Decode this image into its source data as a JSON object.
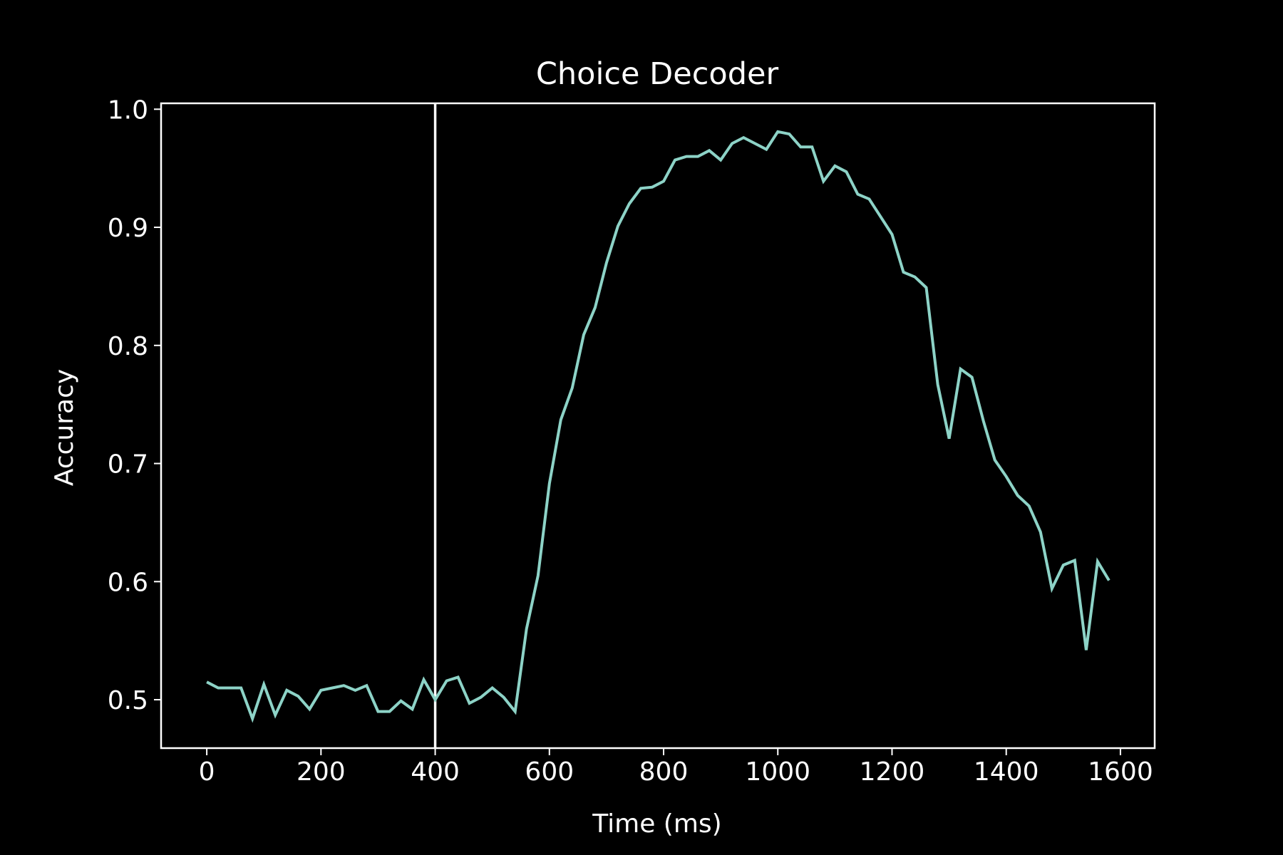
{
  "chart_data": {
    "type": "line",
    "title": "Choice Decoder",
    "xlabel": "Time (ms)",
    "ylabel": "Accuracy",
    "xlim": [
      -80,
      1660
    ],
    "ylim": [
      0.459,
      1.005
    ],
    "xticks": [
      0,
      200,
      400,
      600,
      800,
      1000,
      1200,
      1400,
      1600
    ],
    "xtick_labels": [
      "0",
      "200",
      "400",
      "600",
      "800",
      "1000",
      "1200",
      "1400",
      "1600"
    ],
    "yticks": [
      0.5,
      0.6,
      0.7,
      0.8,
      0.9,
      1.0
    ],
    "ytick_labels": [
      "0.5",
      "0.6",
      "0.7",
      "0.8",
      "0.9",
      "1.0"
    ],
    "grid": false,
    "vline": {
      "x": 400,
      "color": "#ffffff"
    },
    "series": [
      {
        "color": "#8dd3c7",
        "x": [
          0,
          20,
          40,
          60,
          80,
          100,
          120,
          140,
          160,
          180,
          200,
          220,
          240,
          260,
          280,
          300,
          320,
          340,
          360,
          380,
          400,
          420,
          440,
          460,
          480,
          500,
          520,
          540,
          560,
          580,
          600,
          620,
          640,
          660,
          680,
          700,
          720,
          740,
          760,
          780,
          800,
          820,
          840,
          860,
          880,
          900,
          920,
          940,
          960,
          980,
          1000,
          1020,
          1040,
          1060,
          1080,
          1100,
          1120,
          1140,
          1160,
          1180,
          1200,
          1220,
          1240,
          1260,
          1280,
          1300,
          1320,
          1340,
          1360,
          1380,
          1400,
          1420,
          1440,
          1460,
          1480,
          1500,
          1520,
          1540,
          1560,
          1580
        ],
        "y": [
          0.515,
          0.51,
          0.51,
          0.51,
          0.484,
          0.513,
          0.487,
          0.508,
          0.503,
          0.492,
          0.508,
          0.51,
          0.512,
          0.508,
          0.512,
          0.49,
          0.49,
          0.499,
          0.492,
          0.517,
          0.5,
          0.516,
          0.519,
          0.497,
          0.502,
          0.51,
          0.502,
          0.49,
          0.56,
          0.605,
          0.683,
          0.737,
          0.764,
          0.809,
          0.832,
          0.87,
          0.901,
          0.92,
          0.933,
          0.934,
          0.939,
          0.957,
          0.96,
          0.96,
          0.965,
          0.957,
          0.971,
          0.976,
          0.971,
          0.966,
          0.981,
          0.979,
          0.968,
          0.968,
          0.939,
          0.952,
          0.947,
          0.928,
          0.924,
          0.909,
          0.894,
          0.862,
          0.858,
          0.849,
          0.767,
          0.721,
          0.78,
          0.773,
          0.736,
          0.703,
          0.689,
          0.673,
          0.664,
          0.642,
          0.594,
          0.614,
          0.618,
          0.542,
          0.617,
          0.601
        ]
      }
    ]
  }
}
